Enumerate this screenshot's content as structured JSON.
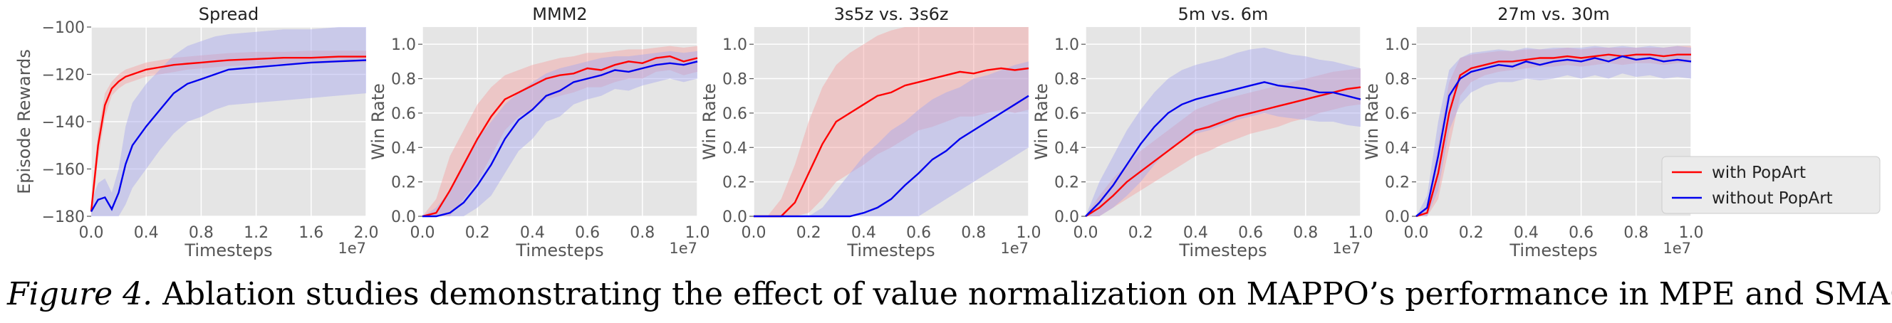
{
  "figure": {
    "caption_label": "Figure 4.",
    "caption_text": "Ablation studies demonstrating the effect of value normalization on MAPPO’s performance in MPE and SMAC."
  },
  "colors": {
    "panel_bg": "#e5e5e5",
    "grid": "#ffffff",
    "with_popart": "#ff0000",
    "without_popart": "#0000ee",
    "with_band": "#f4a0a0",
    "without_band": "#a6a6ee"
  },
  "legend": {
    "placement": "right of last panel",
    "entries": [
      "with PopArt",
      "without PopArt"
    ]
  },
  "chart_data": [
    {
      "type": "line",
      "title": "Spread",
      "xlabel": "Timesteps",
      "ylabel": "Episode Rewards",
      "x_offset_label": "1e7",
      "xlim": [
        0,
        2.0
      ],
      "ylim": [
        -180,
        -100
      ],
      "xticks": [
        0.0,
        0.4,
        0.8,
        1.2,
        1.6,
        2.0
      ],
      "xtick_labels": [
        "0.0",
        "0.4",
        "0.8",
        "1.2",
        "1.6",
        "2.0"
      ],
      "yticks": [
        -180,
        -160,
        -140,
        -120,
        -100
      ],
      "ytick_labels": [
        "−180",
        "−160",
        "−140",
        "−120",
        "−100"
      ],
      "grid": true,
      "x": [
        0,
        0.05,
        0.1,
        0.15,
        0.2,
        0.25,
        0.3,
        0.4,
        0.5,
        0.6,
        0.7,
        0.8,
        0.9,
        1.0,
        1.2,
        1.4,
        1.6,
        1.8,
        2.0
      ],
      "series": [
        {
          "name": "with PopArt",
          "values": [
            -178,
            -150,
            -133,
            -126,
            -123,
            -121,
            -120,
            -118,
            -117,
            -116,
            -115.5,
            -115,
            -114.5,
            -114,
            -113.5,
            -113,
            -113,
            -112.5,
            -112.5
          ],
          "band_low": [
            -182,
            -156,
            -138,
            -129,
            -126,
            -124,
            -123,
            -121,
            -120,
            -119,
            -118,
            -117.5,
            -117,
            -116.5,
            -116,
            -115.5,
            -115.5,
            -115,
            -115
          ],
          "band_high": [
            -174,
            -144,
            -128,
            -123,
            -120,
            -118,
            -117,
            -115,
            -114,
            -113,
            -112.5,
            -112,
            -111.5,
            -111,
            -110.5,
            -110.5,
            -110,
            -110,
            -110
          ]
        },
        {
          "name": "without PopArt",
          "values": [
            -178,
            -173,
            -172,
            -177,
            -170,
            -158,
            -150,
            -142,
            -135,
            -128,
            -124,
            -122,
            -120,
            -118,
            -117,
            -116,
            -115,
            -114.5,
            -114
          ],
          "band_low": [
            -182,
            -180,
            -180,
            -180,
            -180,
            -175,
            -168,
            -160,
            -152,
            -145,
            -140,
            -138,
            -135,
            -133,
            -132,
            -131,
            -130,
            -129,
            -128
          ],
          "band_high": [
            -174,
            -166,
            -164,
            -170,
            -160,
            -142,
            -132,
            -124,
            -118,
            -112,
            -108,
            -106,
            -104,
            -103,
            -102,
            -101,
            -101,
            -100,
            -100
          ]
        }
      ]
    },
    {
      "type": "line",
      "title": "MMM2",
      "xlabel": "Timesteps",
      "ylabel": "Win Rate",
      "x_offset_label": "1e7",
      "xlim": [
        0,
        1.0
      ],
      "ylim": [
        0,
        1.1
      ],
      "xticks": [
        0.0,
        0.2,
        0.4,
        0.6,
        0.8,
        1.0
      ],
      "xtick_labels": [
        "0.0",
        "0.2",
        "0.4",
        "0.6",
        "0.8",
        "1.0"
      ],
      "yticks": [
        0.0,
        0.2,
        0.4,
        0.6,
        0.8,
        1.0
      ],
      "ytick_labels": [
        "0.0",
        "0.2",
        "0.4",
        "0.6",
        "0.8",
        "1.0"
      ],
      "grid": true,
      "x": [
        0,
        0.05,
        0.1,
        0.15,
        0.2,
        0.25,
        0.3,
        0.35,
        0.4,
        0.45,
        0.5,
        0.55,
        0.6,
        0.65,
        0.7,
        0.75,
        0.8,
        0.85,
        0.9,
        0.95,
        1.0
      ],
      "series": [
        {
          "name": "with PopArt",
          "values": [
            0.0,
            0.02,
            0.15,
            0.3,
            0.45,
            0.58,
            0.68,
            0.72,
            0.76,
            0.8,
            0.82,
            0.83,
            0.86,
            0.85,
            0.88,
            0.9,
            0.89,
            0.92,
            0.93,
            0.9,
            0.92
          ],
          "band_low": [
            0.0,
            0.0,
            0.0,
            0.1,
            0.2,
            0.35,
            0.5,
            0.58,
            0.62,
            0.68,
            0.7,
            0.72,
            0.75,
            0.75,
            0.78,
            0.8,
            0.8,
            0.84,
            0.85,
            0.82,
            0.84
          ],
          "band_high": [
            0.0,
            0.1,
            0.35,
            0.5,
            0.65,
            0.75,
            0.82,
            0.85,
            0.88,
            0.9,
            0.92,
            0.93,
            0.95,
            0.95,
            0.96,
            0.97,
            0.97,
            0.98,
            0.99,
            0.98,
            0.99
          ]
        },
        {
          "name": "without PopArt",
          "values": [
            0.0,
            0.0,
            0.02,
            0.08,
            0.18,
            0.3,
            0.45,
            0.56,
            0.62,
            0.7,
            0.73,
            0.78,
            0.8,
            0.82,
            0.85,
            0.84,
            0.86,
            0.88,
            0.89,
            0.88,
            0.9
          ],
          "band_low": [
            0.0,
            0.0,
            0.0,
            0.0,
            0.05,
            0.12,
            0.25,
            0.38,
            0.45,
            0.55,
            0.58,
            0.65,
            0.68,
            0.7,
            0.74,
            0.73,
            0.76,
            0.78,
            0.8,
            0.78,
            0.8
          ],
          "band_high": [
            0.0,
            0.05,
            0.15,
            0.3,
            0.45,
            0.55,
            0.65,
            0.72,
            0.78,
            0.83,
            0.86,
            0.88,
            0.9,
            0.92,
            0.93,
            0.93,
            0.94,
            0.95,
            0.96,
            0.95,
            0.96
          ]
        }
      ]
    },
    {
      "type": "line",
      "title": "3s5z vs. 3s6z",
      "xlabel": "Timesteps",
      "ylabel": "Win Rate",
      "x_offset_label": "1e7",
      "xlim": [
        0,
        1.0
      ],
      "ylim": [
        0,
        1.1
      ],
      "xticks": [
        0.0,
        0.2,
        0.4,
        0.6,
        0.8,
        1.0
      ],
      "xtick_labels": [
        "0.0",
        "0.2",
        "0.4",
        "0.6",
        "0.8",
        "1.0"
      ],
      "yticks": [
        0.0,
        0.2,
        0.4,
        0.6,
        0.8,
        1.0
      ],
      "ytick_labels": [
        "0.0",
        "0.2",
        "0.4",
        "0.6",
        "0.8",
        "1.0"
      ],
      "grid": true,
      "x": [
        0,
        0.05,
        0.1,
        0.15,
        0.2,
        0.25,
        0.3,
        0.35,
        0.4,
        0.45,
        0.5,
        0.55,
        0.6,
        0.65,
        0.7,
        0.75,
        0.8,
        0.85,
        0.9,
        0.95,
        1.0
      ],
      "series": [
        {
          "name": "with PopArt",
          "values": [
            0.0,
            0.0,
            0.0,
            0.08,
            0.25,
            0.42,
            0.55,
            0.6,
            0.65,
            0.7,
            0.72,
            0.76,
            0.78,
            0.8,
            0.82,
            0.84,
            0.83,
            0.85,
            0.86,
            0.85,
            0.86
          ],
          "band_low": [
            0.0,
            0.0,
            0.0,
            0.0,
            0.02,
            0.1,
            0.2,
            0.25,
            0.3,
            0.36,
            0.4,
            0.45,
            0.5,
            0.52,
            0.55,
            0.58,
            0.58,
            0.6,
            0.62,
            0.6,
            0.62
          ],
          "band_high": [
            0.0,
            0.0,
            0.1,
            0.3,
            0.55,
            0.75,
            0.88,
            0.95,
            1.0,
            1.05,
            1.08,
            1.1,
            1.1,
            1.1,
            1.1,
            1.1,
            1.1,
            1.1,
            1.1,
            1.1,
            1.1
          ]
        },
        {
          "name": "without PopArt",
          "values": [
            0.0,
            0.0,
            0.0,
            0.0,
            0.0,
            0.0,
            0.0,
            0.0,
            0.02,
            0.05,
            0.1,
            0.18,
            0.25,
            0.33,
            0.38,
            0.45,
            0.5,
            0.55,
            0.6,
            0.65,
            0.7
          ],
          "band_low": [
            0.0,
            0.0,
            0.0,
            0.0,
            0.0,
            0.0,
            0.0,
            0.0,
            0.0,
            0.0,
            0.0,
            0.0,
            0.0,
            0.05,
            0.1,
            0.15,
            0.2,
            0.25,
            0.3,
            0.35,
            0.4
          ],
          "band_high": [
            0.0,
            0.0,
            0.0,
            0.0,
            0.0,
            0.05,
            0.15,
            0.25,
            0.35,
            0.42,
            0.5,
            0.55,
            0.62,
            0.68,
            0.72,
            0.75,
            0.8,
            0.82,
            0.85,
            0.88,
            0.9
          ]
        }
      ]
    },
    {
      "type": "line",
      "title": "5m vs. 6m",
      "xlabel": "Timesteps",
      "ylabel": "Win Rate",
      "x_offset_label": "1e7",
      "xlim": [
        0,
        1.0
      ],
      "ylim": [
        0,
        1.1
      ],
      "xticks": [
        0.0,
        0.2,
        0.4,
        0.6,
        0.8,
        1.0
      ],
      "xtick_labels": [
        "0.0",
        "0.2",
        "0.4",
        "0.6",
        "0.8",
        "1.0"
      ],
      "yticks": [
        0.0,
        0.2,
        0.4,
        0.6,
        0.8,
        1.0
      ],
      "ytick_labels": [
        "0.0",
        "0.2",
        "0.4",
        "0.6",
        "0.8",
        "1.0"
      ],
      "grid": true,
      "x": [
        0,
        0.05,
        0.1,
        0.15,
        0.2,
        0.25,
        0.3,
        0.35,
        0.4,
        0.45,
        0.5,
        0.55,
        0.6,
        0.65,
        0.7,
        0.75,
        0.8,
        0.85,
        0.9,
        0.95,
        1.0
      ],
      "series": [
        {
          "name": "with PopArt",
          "values": [
            0.0,
            0.05,
            0.12,
            0.2,
            0.26,
            0.32,
            0.38,
            0.44,
            0.5,
            0.52,
            0.55,
            0.58,
            0.6,
            0.62,
            0.64,
            0.66,
            0.68,
            0.7,
            0.72,
            0.74,
            0.75
          ],
          "band_low": [
            0.0,
            0.0,
            0.05,
            0.1,
            0.15,
            0.2,
            0.25,
            0.3,
            0.35,
            0.38,
            0.42,
            0.45,
            0.48,
            0.5,
            0.52,
            0.55,
            0.57,
            0.6,
            0.62,
            0.64,
            0.65
          ],
          "band_high": [
            0.0,
            0.12,
            0.22,
            0.3,
            0.38,
            0.44,
            0.5,
            0.56,
            0.62,
            0.65,
            0.68,
            0.7,
            0.72,
            0.74,
            0.76,
            0.78,
            0.8,
            0.82,
            0.84,
            0.85,
            0.86
          ]
        },
        {
          "name": "without PopArt",
          "values": [
            0.0,
            0.08,
            0.18,
            0.3,
            0.42,
            0.52,
            0.6,
            0.65,
            0.68,
            0.7,
            0.72,
            0.74,
            0.76,
            0.78,
            0.76,
            0.75,
            0.74,
            0.72,
            0.72,
            0.7,
            0.68
          ],
          "band_low": [
            0.0,
            0.0,
            0.05,
            0.12,
            0.2,
            0.3,
            0.38,
            0.44,
            0.48,
            0.5,
            0.53,
            0.56,
            0.58,
            0.6,
            0.58,
            0.57,
            0.56,
            0.55,
            0.55,
            0.53,
            0.52
          ],
          "band_high": [
            0.0,
            0.2,
            0.35,
            0.5,
            0.62,
            0.72,
            0.8,
            0.85,
            0.88,
            0.9,
            0.92,
            0.95,
            0.97,
            0.98,
            0.96,
            0.94,
            0.93,
            0.91,
            0.9,
            0.88,
            0.86
          ]
        }
      ]
    },
    {
      "type": "line",
      "title": "27m vs. 30m",
      "xlabel": "Timesteps",
      "ylabel": "Win Rate",
      "x_offset_label": "1e7",
      "xlim": [
        0,
        1.0
      ],
      "ylim": [
        0,
        1.1
      ],
      "xticks": [
        0.0,
        0.2,
        0.4,
        0.6,
        0.8,
        1.0
      ],
      "xtick_labels": [
        "0.0",
        "0.2",
        "0.4",
        "0.6",
        "0.8",
        "1.0"
      ],
      "yticks": [
        0.0,
        0.2,
        0.4,
        0.6,
        0.8,
        1.0
      ],
      "ytick_labels": [
        "0.0",
        "0.2",
        "0.4",
        "0.6",
        "0.8",
        "1.0"
      ],
      "grid": true,
      "x": [
        0,
        0.04,
        0.08,
        0.12,
        0.16,
        0.2,
        0.25,
        0.3,
        0.35,
        0.4,
        0.45,
        0.5,
        0.55,
        0.6,
        0.65,
        0.7,
        0.75,
        0.8,
        0.85,
        0.9,
        0.95,
        1.0
      ],
      "series": [
        {
          "name": "with PopArt",
          "values": [
            0.0,
            0.02,
            0.25,
            0.6,
            0.82,
            0.86,
            0.88,
            0.9,
            0.9,
            0.91,
            0.92,
            0.92,
            0.93,
            0.92,
            0.93,
            0.94,
            0.93,
            0.94,
            0.94,
            0.93,
            0.94,
            0.94
          ],
          "band_low": [
            0.0,
            0.0,
            0.1,
            0.4,
            0.7,
            0.78,
            0.82,
            0.84,
            0.85,
            0.86,
            0.87,
            0.87,
            0.88,
            0.87,
            0.88,
            0.89,
            0.88,
            0.89,
            0.89,
            0.88,
            0.89,
            0.89
          ],
          "band_high": [
            0.0,
            0.06,
            0.42,
            0.78,
            0.92,
            0.94,
            0.95,
            0.96,
            0.96,
            0.97,
            0.97,
            0.97,
            0.98,
            0.97,
            0.98,
            0.98,
            0.98,
            0.98,
            0.98,
            0.98,
            0.99,
            0.99
          ]
        },
        {
          "name": "without PopArt",
          "values": [
            0.0,
            0.05,
            0.35,
            0.7,
            0.8,
            0.84,
            0.86,
            0.88,
            0.87,
            0.9,
            0.88,
            0.9,
            0.91,
            0.9,
            0.92,
            0.9,
            0.93,
            0.91,
            0.92,
            0.9,
            0.91,
            0.9
          ],
          "band_low": [
            0.0,
            0.0,
            0.15,
            0.5,
            0.65,
            0.72,
            0.76,
            0.78,
            0.78,
            0.8,
            0.79,
            0.8,
            0.82,
            0.8,
            0.82,
            0.8,
            0.83,
            0.81,
            0.82,
            0.8,
            0.81,
            0.8
          ],
          "band_high": [
            0.0,
            0.12,
            0.55,
            0.85,
            0.92,
            0.95,
            0.96,
            0.97,
            0.96,
            0.98,
            0.97,
            0.98,
            0.98,
            0.98,
            0.99,
            0.98,
            0.99,
            0.98,
            0.99,
            0.98,
            0.99,
            0.98
          ]
        }
      ]
    }
  ]
}
